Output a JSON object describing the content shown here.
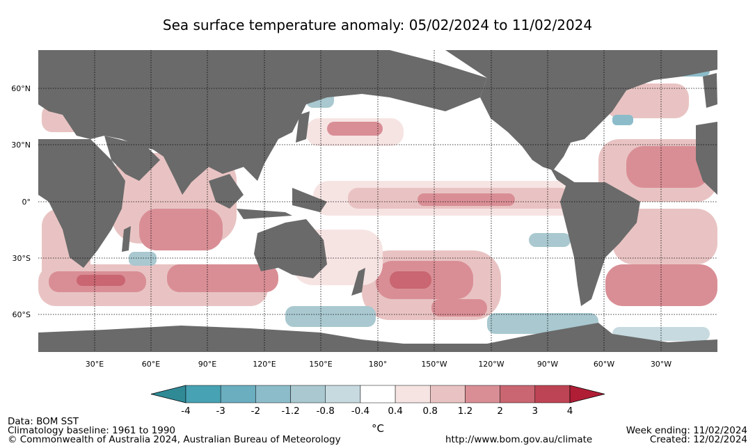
{
  "title": "Sea surface temperature anomaly: 05/02/2024 to 11/02/2024",
  "map": {
    "lat_labels": [
      "60°N",
      "30°N",
      "0°",
      "30°S",
      "60°S"
    ],
    "lon_labels": [
      "30°E",
      "60°E",
      "90°E",
      "120°E",
      "150°E",
      "180°",
      "150°W",
      "120°W",
      "90°W",
      "60°W",
      "30°W"
    ],
    "colors": {
      "land": "#6a6a6a",
      "ocean_neutral": "#ffffff"
    }
  },
  "colorbar": {
    "ticks": [
      "-4",
      "-3",
      "-2",
      "-1.2",
      "-0.8",
      "-0.4",
      "0.4",
      "0.8",
      "1.2",
      "2",
      "3",
      "4"
    ],
    "colors": [
      "#2f8a96",
      "#47a2b3",
      "#6aaebf",
      "#8cbcca",
      "#a9c8d0",
      "#c6dadf",
      "#ffffff",
      "#f6e4e3",
      "#e9c3c3",
      "#d98e95",
      "#c96671",
      "#bd4454",
      "#b51f38",
      "#b01e36"
    ],
    "unit": "°C"
  },
  "footer": {
    "data_source": "Data: BOM SST",
    "baseline": "Climatology baseline: 1961 to 1990",
    "copyright": "© Commonwealth of Australia 2024, Australian Bureau of Meteorology",
    "url": "http://www.bom.gov.au/climate",
    "week_ending": "Week ending: 11/02/2024",
    "created": "Created: 12/02/2024"
  }
}
